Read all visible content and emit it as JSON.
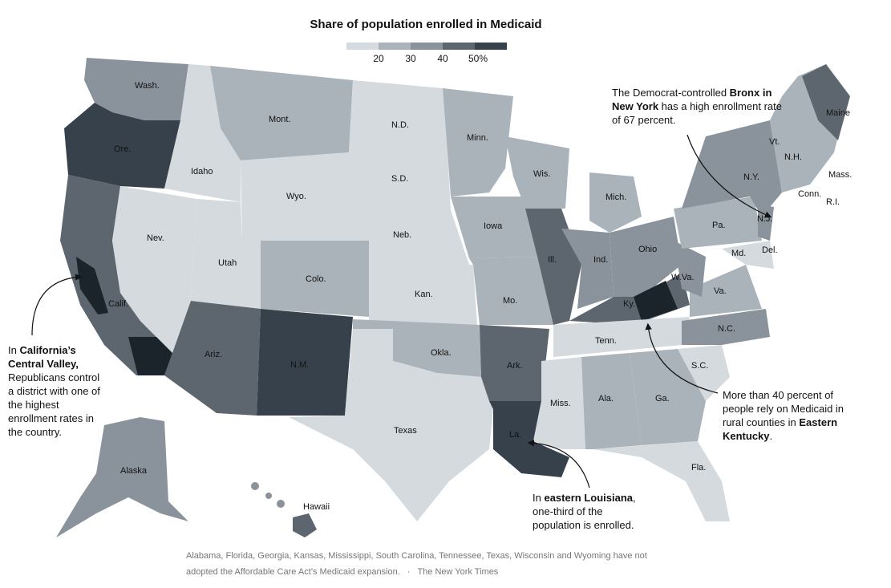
{
  "title": "Share of population enrolled in Medicaid",
  "legend": {
    "ticks": [
      "20",
      "30",
      "40",
      "50%"
    ],
    "colors": [
      "#d4dadd",
      "#aab3b9",
      "#8a939b",
      "#5d666f",
      "#37414b"
    ]
  },
  "states": [
    {
      "label": "Wash."
    },
    {
      "label": "Ore."
    },
    {
      "label": "Calif."
    },
    {
      "label": "Idaho"
    },
    {
      "label": "Nev."
    },
    {
      "label": "Mont."
    },
    {
      "label": "Wyo."
    },
    {
      "label": "Utah"
    },
    {
      "label": "Colo."
    },
    {
      "label": "Ariz."
    },
    {
      "label": "N.M."
    },
    {
      "label": "N.D."
    },
    {
      "label": "S.D."
    },
    {
      "label": "Neb."
    },
    {
      "label": "Kan."
    },
    {
      "label": "Okla."
    },
    {
      "label": "Texas"
    },
    {
      "label": "Minn."
    },
    {
      "label": "Iowa"
    },
    {
      "label": "Mo."
    },
    {
      "label": "Ark."
    },
    {
      "label": "La."
    },
    {
      "label": "Wis."
    },
    {
      "label": "Ill."
    },
    {
      "label": "Mich."
    },
    {
      "label": "Ind."
    },
    {
      "label": "Ohio"
    },
    {
      "label": "Ky."
    },
    {
      "label": "Tenn."
    },
    {
      "label": "Miss."
    },
    {
      "label": "Ala."
    },
    {
      "label": "Ga."
    },
    {
      "label": "Fla."
    },
    {
      "label": "S.C."
    },
    {
      "label": "N.C."
    },
    {
      "label": "Va."
    },
    {
      "label": "W.Va."
    },
    {
      "label": "Pa."
    },
    {
      "label": "N.Y."
    },
    {
      "label": "Vt."
    },
    {
      "label": "N.H."
    },
    {
      "label": "Maine"
    },
    {
      "label": "Mass."
    },
    {
      "label": "Conn."
    },
    {
      "label": "R.I."
    },
    {
      "label": "N.J."
    },
    {
      "label": "Del."
    },
    {
      "label": "Md."
    },
    {
      "label": "Alaska"
    },
    {
      "label": "Hawaii"
    }
  ],
  "annotations": {
    "bronx": {
      "pre": "The Democrat-controlled ",
      "bold": "Bronx in New York",
      "post": " has a high enrollment rate of 67 percent."
    },
    "california": {
      "pre": "In ",
      "bold": "California’s Central Valley,",
      "post": " Republicans control a district with one of the highest enrollment rates in the country."
    },
    "kentucky": {
      "pre": "More than 40 percent of people rely on Medicaid in rural counties in ",
      "bold": "Eastern Kentucky",
      "post": "."
    },
    "louisiana": {
      "pre": "In ",
      "bold": "eastern Louisiana",
      "post": ", one-third of the population is enrolled."
    }
  },
  "footer": {
    "note": "Alabama, Florida, Georgia, Kansas, Mississippi, South Carolina, Tennessee, Texas, Wisconsin and Wyoming have not adopted the Affordable Care Act’s Medicaid expansion.",
    "separator": "·",
    "source": "The New York Times"
  }
}
